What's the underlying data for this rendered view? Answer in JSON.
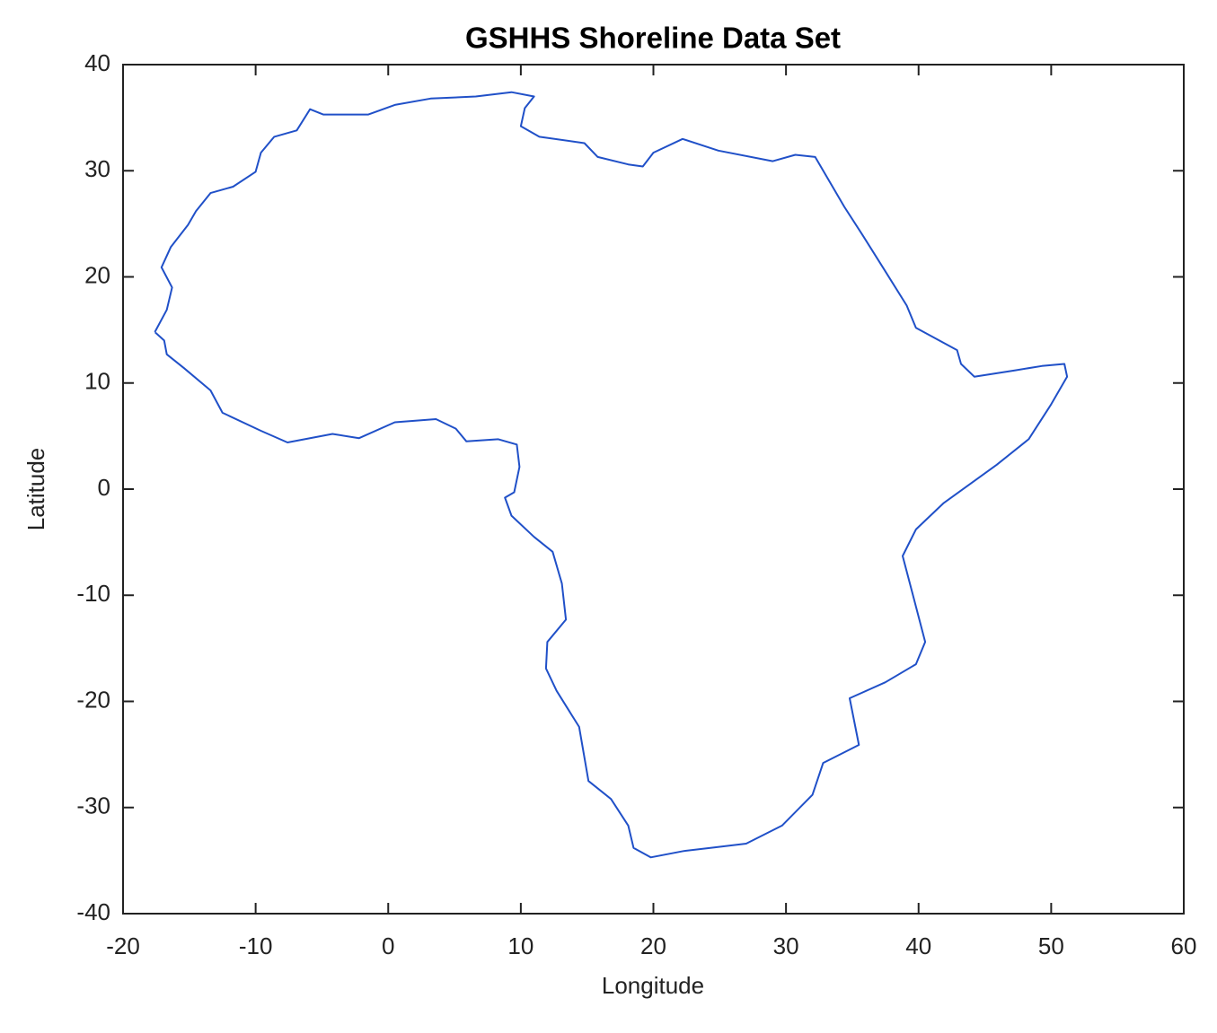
{
  "chart_data": {
    "type": "line",
    "title": "GSHHS Shoreline Data Set",
    "x_label": "Longitude",
    "y_label": "Latitude",
    "x": [
      -17.6,
      -16.7,
      -16.3,
      -17.1,
      -16.4,
      -15.1,
      -14.5,
      -13.4,
      -11.7,
      -10.0,
      -9.6,
      -8.6,
      -6.9,
      -5.9,
      -4.9,
      -2.9,
      -1.5,
      0.5,
      3.2,
      6.6,
      9.3,
      11.0,
      10.3,
      10.0,
      11.4,
      14.8,
      15.8,
      18.1,
      19.2,
      20.0,
      22.2,
      24.9,
      29.0,
      30.7,
      32.2,
      34.4,
      35.8,
      37.4,
      39.1,
      39.8,
      42.9,
      43.2,
      44.2,
      47.3,
      49.3,
      51.0,
      51.2,
      50.0,
      48.3,
      45.9,
      41.9,
      39.8,
      38.8,
      39.6,
      40.5,
      39.8,
      37.5,
      34.8,
      35.5,
      32.8,
      32.0,
      29.7,
      27.0,
      24.3,
      22.3,
      19.8,
      18.5,
      18.1,
      16.8,
      15.1,
      14.4,
      12.7,
      11.9,
      12.0,
      13.4,
      13.1,
      12.4,
      11.0,
      9.3,
      8.8,
      9.5,
      9.9,
      9.7,
      8.3,
      5.9,
      5.1,
      3.6,
      0.5,
      -2.2,
      -4.2,
      -7.6,
      -9.6,
      -12.5,
      -13.4,
      -15.4,
      -16.7,
      -16.9,
      -17.6
    ],
    "values": [
      14.8,
      16.9,
      19.0,
      20.9,
      22.8,
      24.9,
      26.2,
      27.9,
      28.5,
      29.9,
      31.7,
      33.2,
      33.8,
      35.8,
      35.3,
      35.3,
      35.3,
      36.2,
      36.8,
      37.0,
      37.4,
      37.0,
      35.9,
      34.2,
      33.2,
      32.6,
      31.3,
      30.6,
      30.4,
      31.7,
      33.0,
      31.9,
      30.9,
      31.5,
      31.3,
      26.6,
      23.9,
      20.7,
      17.3,
      15.2,
      13.1,
      11.8,
      10.6,
      11.2,
      11.6,
      11.8,
      10.6,
      8.0,
      4.7,
      2.3,
      -1.3,
      -3.8,
      -6.3,
      -10.1,
      -14.4,
      -16.5,
      -18.2,
      -19.7,
      -24.1,
      -25.8,
      -28.8,
      -31.7,
      -33.4,
      -33.8,
      -34.1,
      -34.7,
      -33.8,
      -31.7,
      -29.2,
      -27.5,
      -22.4,
      -19.0,
      -16.9,
      -14.4,
      -12.3,
      -8.9,
      -5.9,
      -4.5,
      -2.5,
      -0.8,
      -0.3,
      2.1,
      4.2,
      4.7,
      4.5,
      5.7,
      6.6,
      6.3,
      4.8,
      5.2,
      4.4,
      5.5,
      7.2,
      9.3,
      11.4,
      12.7,
      14.0,
      14.8
    ],
    "color": "#2050c8",
    "xlim": [
      -20,
      60
    ],
    "xticks": [
      -20,
      -10,
      0,
      10,
      20,
      30,
      40,
      50,
      60
    ],
    "ylim": [
      -40,
      40
    ],
    "yticks": [
      -40,
      -30,
      -20,
      -10,
      0,
      10,
      20,
      30,
      40
    ],
    "grid": false
  }
}
